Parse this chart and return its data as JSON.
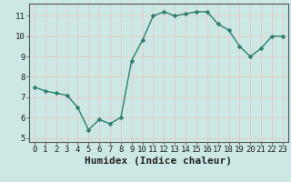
{
  "x": [
    0,
    1,
    2,
    3,
    4,
    5,
    6,
    7,
    8,
    9,
    10,
    11,
    12,
    13,
    14,
    15,
    16,
    17,
    18,
    19,
    20,
    21,
    22,
    23
  ],
  "y": [
    7.5,
    7.3,
    7.2,
    7.1,
    6.5,
    5.4,
    5.9,
    5.7,
    6.0,
    8.8,
    9.8,
    11.0,
    11.2,
    11.0,
    11.1,
    11.2,
    11.2,
    10.6,
    10.3,
    9.5,
    9.0,
    9.4,
    10.0,
    10.0
  ],
  "line_color": "#2d7d6e",
  "marker_color": "#2d7d6e",
  "bg_color": "#cce8e4",
  "grid_color": "#e8c8c8",
  "axis_color": "#555555",
  "tick_label_color": "#222222",
  "xlabel": "Humidex (Indice chaleur)",
  "xlim": [
    -0.5,
    23.5
  ],
  "ylim": [
    4.8,
    11.6
  ],
  "yticks": [
    5,
    6,
    7,
    8,
    9,
    10,
    11
  ],
  "xticks": [
    0,
    1,
    2,
    3,
    4,
    5,
    6,
    7,
    8,
    9,
    10,
    11,
    12,
    13,
    14,
    15,
    16,
    17,
    18,
    19,
    20,
    21,
    22,
    23
  ],
  "xtick_labels": [
    "0",
    "1",
    "2",
    "3",
    "4",
    "5",
    "6",
    "7",
    "8",
    "9",
    "10",
    "11",
    "12",
    "13",
    "14",
    "15",
    "16",
    "17",
    "18",
    "19",
    "20",
    "21",
    "22",
    "23"
  ],
  "xlabel_fontsize": 8,
  "tick_fontsize": 6.5,
  "linewidth": 1.0,
  "markersize": 2.5
}
